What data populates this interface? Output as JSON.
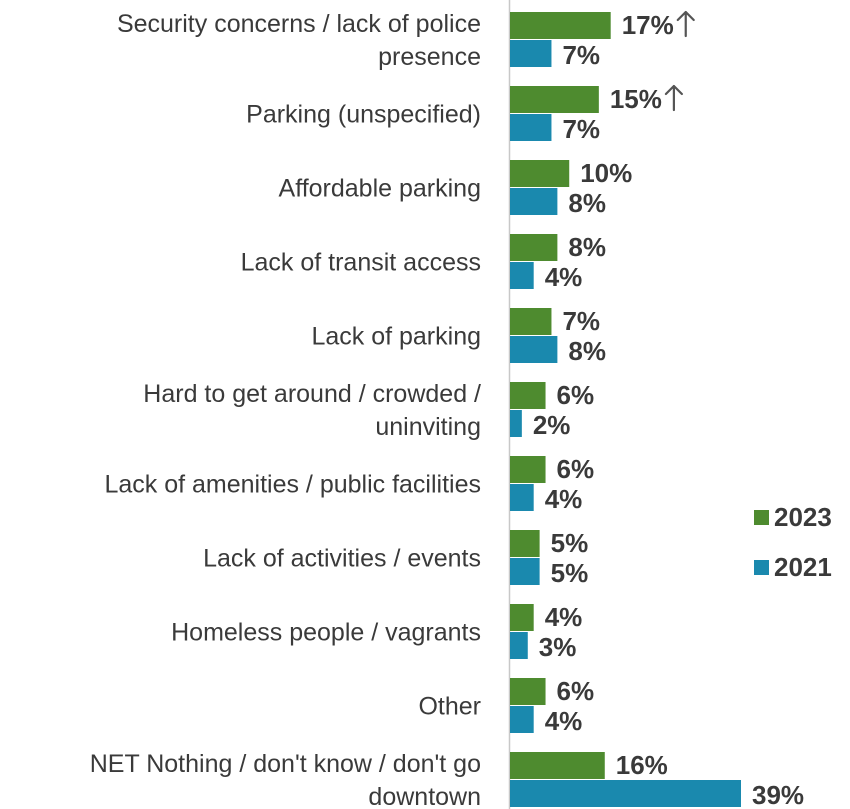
{
  "chart_data": {
    "type": "bar",
    "orientation": "horizontal",
    "title": "",
    "xlabel": "",
    "ylabel": "",
    "categories": [
      [
        "Security concerns / lack of police",
        "presence"
      ],
      [
        "Parking (unspecified)"
      ],
      [
        "Affordable parking"
      ],
      [
        "Lack of transit access"
      ],
      [
        "Lack of parking"
      ],
      [
        "Hard to get around / crowded /",
        "uninviting"
      ],
      [
        "Lack of amenities / public facilities"
      ],
      [
        "Lack of activities / events"
      ],
      [
        "Homeless people / vagrants"
      ],
      [
        "Other"
      ],
      [
        "NET Nothing /  don't know / don't go",
        "downtown"
      ]
    ],
    "series": [
      {
        "name": "2023",
        "color": "#4e8b2f",
        "values": [
          17,
          15,
          10,
          8,
          7,
          6,
          6,
          5,
          4,
          6,
          16
        ],
        "labels": [
          "17%",
          "15%",
          "10%",
          "8%",
          "7%",
          "6%",
          "6%",
          "5%",
          "4%",
          "6%",
          "16%"
        ]
      },
      {
        "name": "2021",
        "color": "#1a89ae",
        "values": [
          7,
          7,
          8,
          4,
          8,
          2,
          4,
          5,
          3,
          4,
          39
        ],
        "labels": [
          "7%",
          "7%",
          "8%",
          "4%",
          "8%",
          "2%",
          "4%",
          "5%",
          "3%",
          "4%",
          "39%"
        ]
      }
    ],
    "significant_increase": [
      true,
      true,
      false,
      false,
      false,
      false,
      false,
      false,
      false,
      false,
      false
    ],
    "significance_icon": "arrow-up-icon",
    "axis_color": "#c8c8c8",
    "gridlines": false,
    "xlim": [
      0,
      39
    ],
    "legend": {
      "placement": "right",
      "order": [
        "2023",
        "2021"
      ]
    }
  }
}
